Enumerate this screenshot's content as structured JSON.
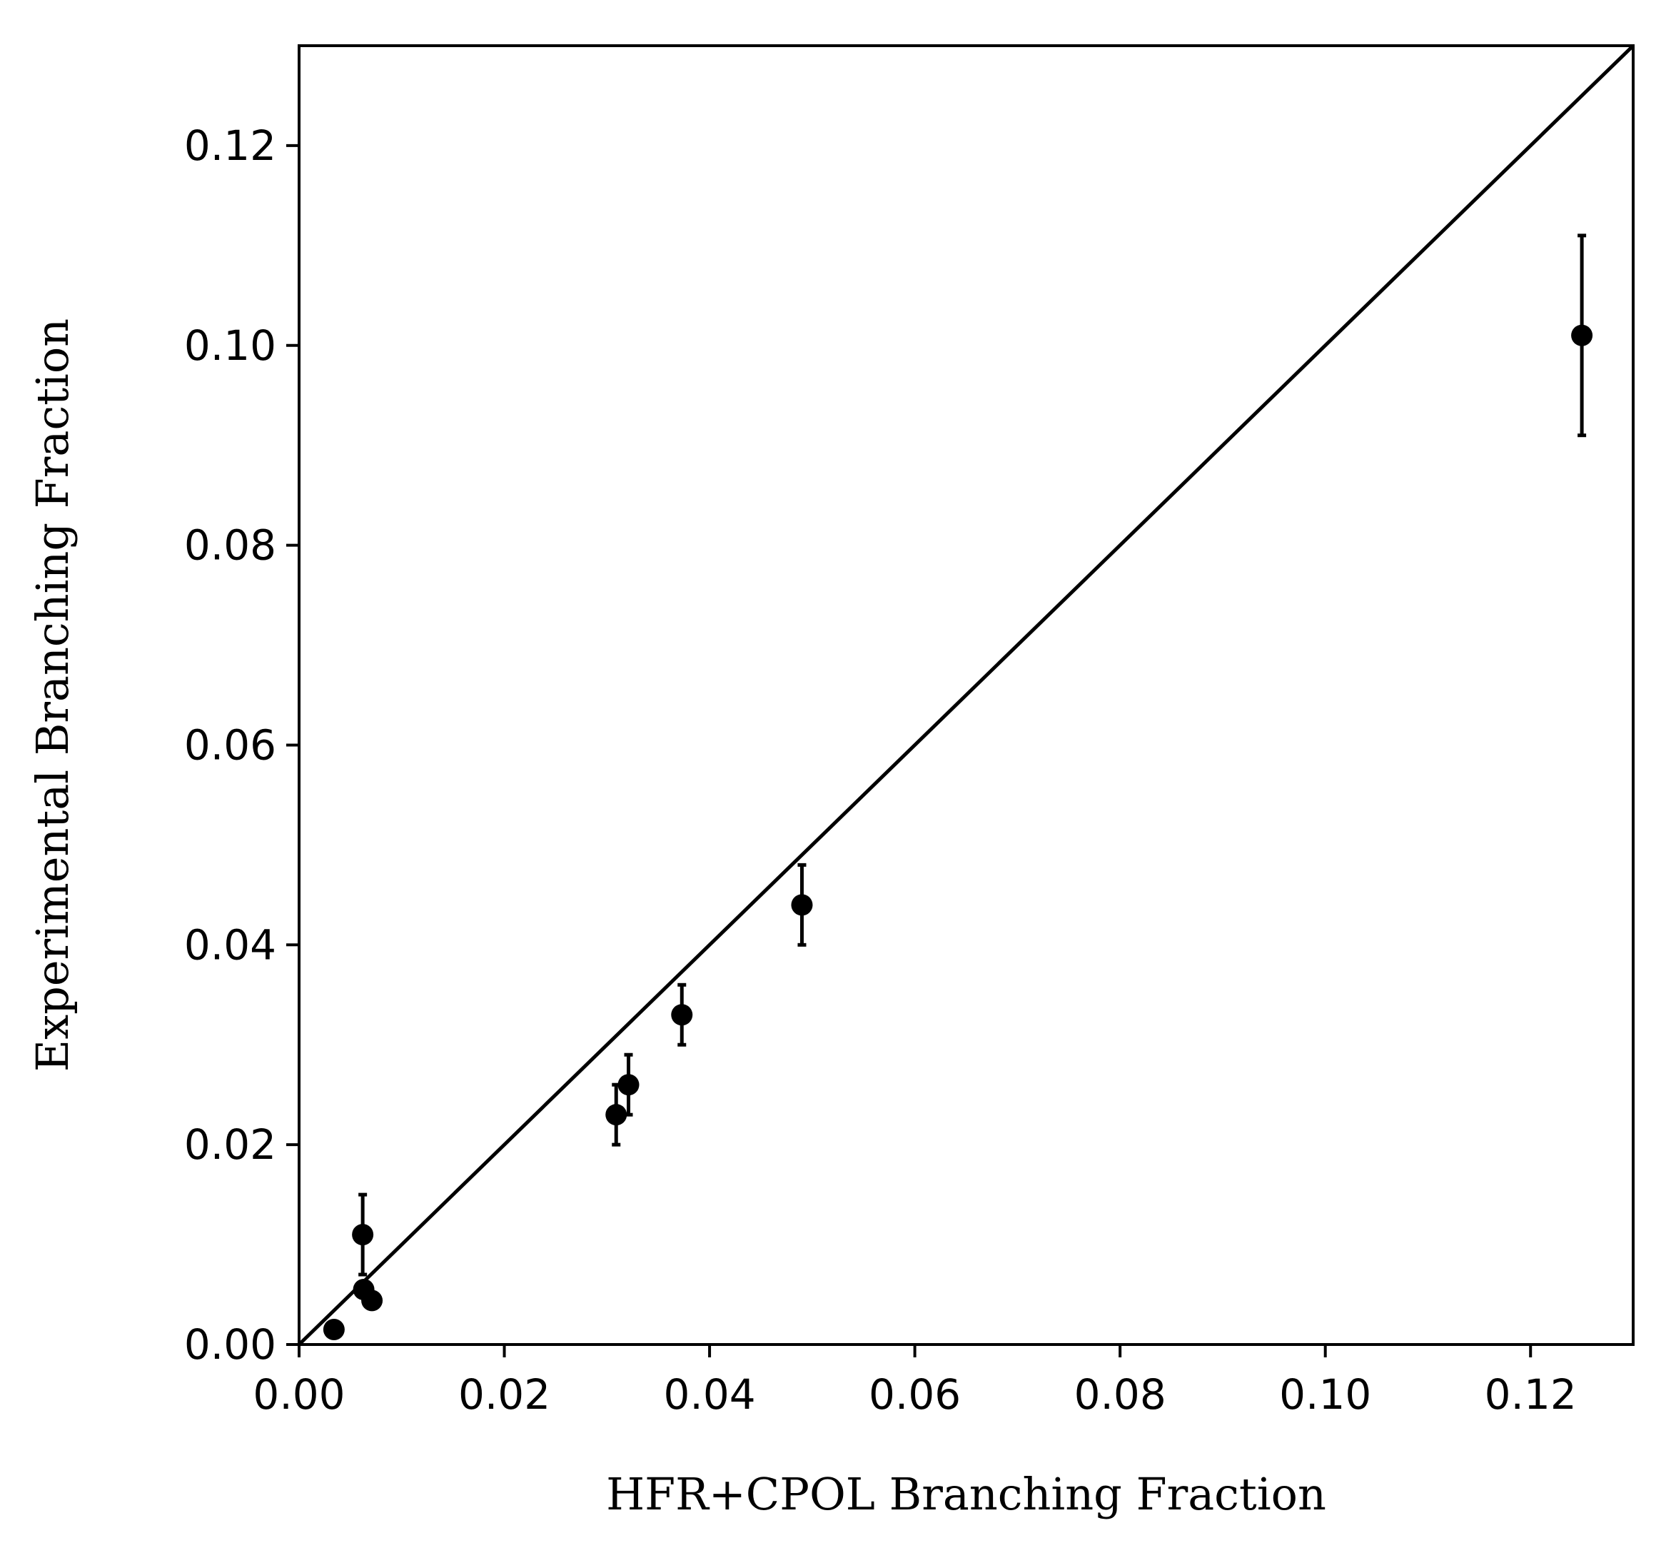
{
  "chart_data": {
    "type": "scatter",
    "xlabel": "HFR+CPOL Branching Fraction",
    "ylabel": "Experimental Branching Fraction",
    "xlim": [
      0.0,
      0.13
    ],
    "ylim": [
      0.0,
      0.13
    ],
    "x_ticks": [
      "0.00",
      "0.02",
      "0.04",
      "0.06",
      "0.08",
      "0.10",
      "0.12"
    ],
    "y_ticks": [
      "0.00",
      "0.02",
      "0.04",
      "0.06",
      "0.08",
      "0.10",
      "0.12"
    ],
    "grid": false,
    "reference_line": {
      "type": "y=x",
      "from": [
        0.0,
        0.0
      ],
      "to": [
        0.13,
        0.13
      ]
    },
    "points": [
      {
        "x": 0.0034,
        "y": 0.0015,
        "yerr": 0.0005
      },
      {
        "x": 0.0062,
        "y": 0.011,
        "yerr": 0.004
      },
      {
        "x": 0.0063,
        "y": 0.0055,
        "yerr": 0.0007
      },
      {
        "x": 0.0071,
        "y": 0.0044,
        "yerr": 0.0006
      },
      {
        "x": 0.0309,
        "y": 0.023,
        "yerr": 0.003
      },
      {
        "x": 0.0321,
        "y": 0.026,
        "yerr": 0.003
      },
      {
        "x": 0.0373,
        "y": 0.033,
        "yerr": 0.003
      },
      {
        "x": 0.049,
        "y": 0.044,
        "yerr": 0.004
      },
      {
        "x": 0.125,
        "y": 0.101,
        "yerr": 0.01
      }
    ],
    "colors": {
      "marker": "#000000",
      "line": "#000000"
    }
  }
}
